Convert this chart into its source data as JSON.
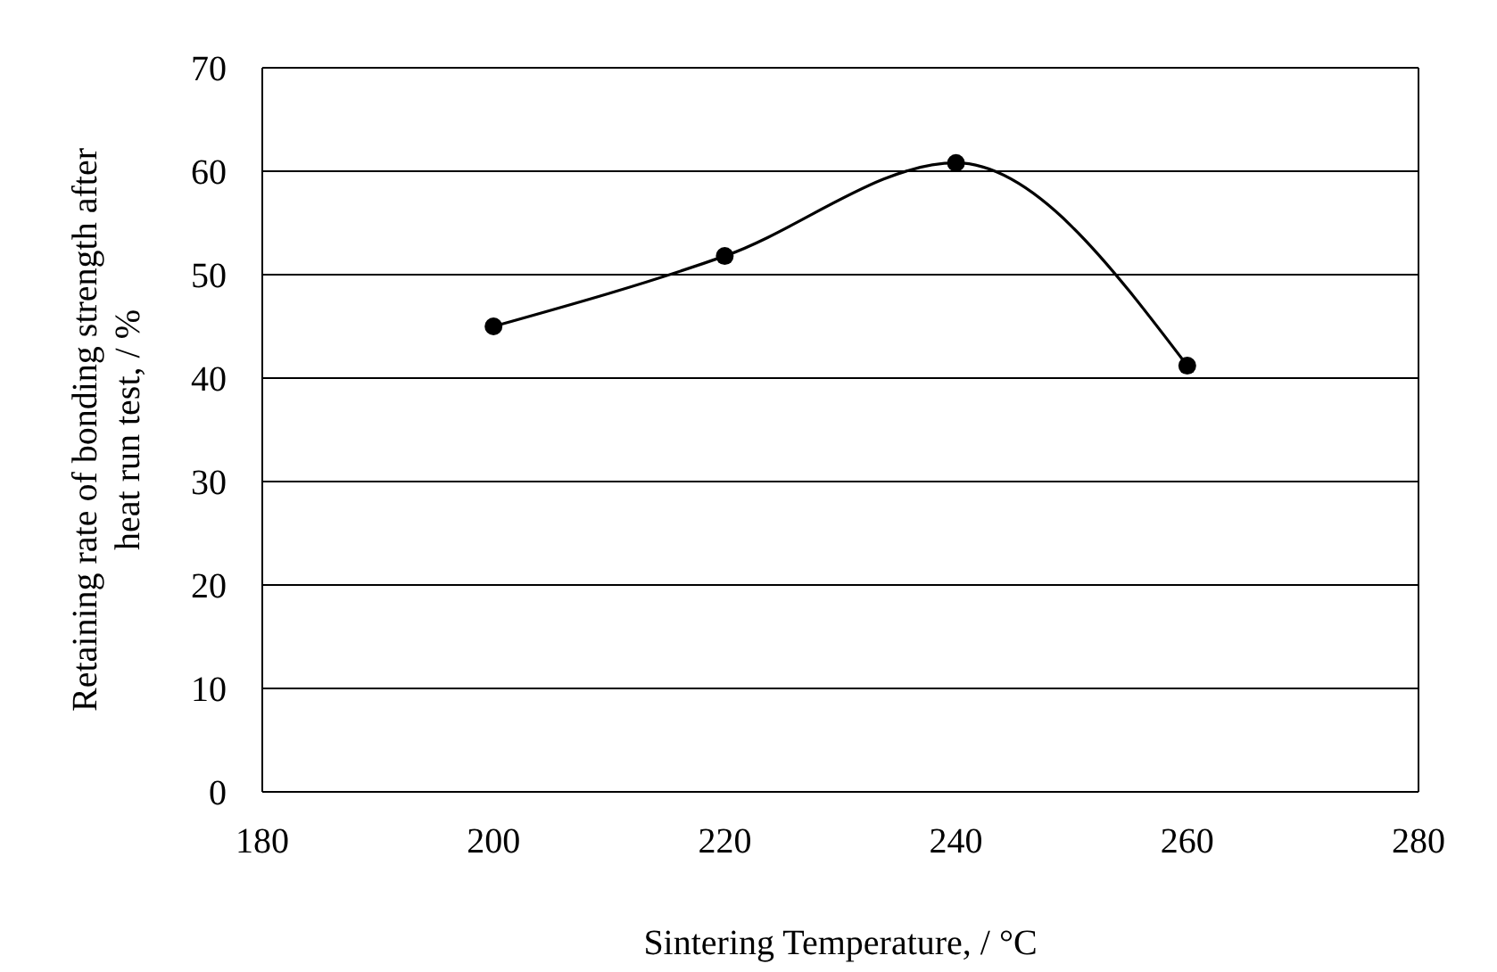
{
  "chart_data": {
    "type": "line",
    "xlabel": "Sintering Temperature, / °C",
    "ylabel": "Retaining rate of bonding strength after heat run test, / %",
    "x": [
      200,
      220,
      240,
      260
    ],
    "series": [
      {
        "color": "#000000",
        "values": [
          45,
          51.8,
          60.8,
          41.2
        ]
      }
    ],
    "xlim": [
      180,
      280
    ],
    "xticks": [
      180,
      200,
      220,
      240,
      260,
      280
    ],
    "ylim": [
      0,
      70
    ],
    "yticks": [
      0,
      10,
      20,
      30,
      40,
      50,
      60,
      70
    ],
    "grid": "y",
    "marker": "circle",
    "line_style": "solid"
  }
}
